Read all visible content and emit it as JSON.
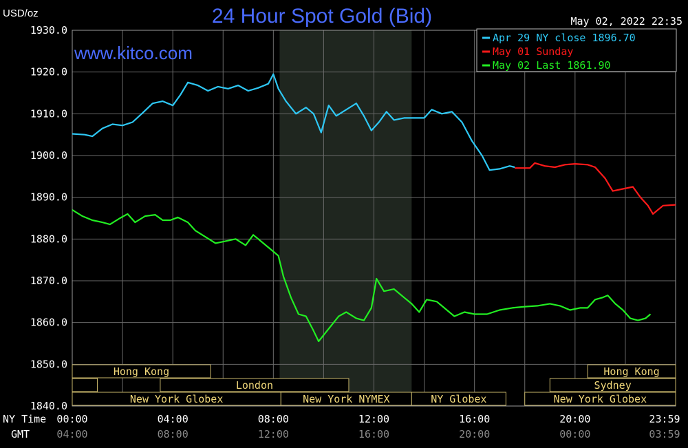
{
  "header": {
    "unit": "USD/oz",
    "title": "24 Hour Spot Gold (Bid)",
    "timestamp": "May 02, 2022 22:35",
    "watermark": "www.kitco.com"
  },
  "legend": [
    {
      "label": "Apr 29 NY close 1896.70",
      "color": "#2ec8f5"
    },
    {
      "label": "May 01 Sunday",
      "color": "#ff1a1a"
    },
    {
      "label": "May 02 Last 1861.90",
      "color": "#22ee22"
    }
  ],
  "axis": {
    "y_ticks": [
      "1930.0",
      "1920.0",
      "1910.0",
      "1900.0",
      "1890.0",
      "1880.0",
      "1870.0",
      "1860.0",
      "1850.0",
      "1840.0"
    ],
    "x_ny_label": "NY Time",
    "x_gmt_label": "GMT",
    "x_ny_ticks": [
      "00:00",
      "04:00",
      "08:00",
      "12:00",
      "16:00",
      "20:00",
      "23:59"
    ],
    "x_gmt_ticks": [
      "04:00",
      "08:00",
      "12:00",
      "16:00",
      "20:00",
      "00:00",
      "03:59"
    ]
  },
  "sessions": {
    "row1": [
      {
        "label": "Hong Kong",
        "start": 0,
        "end": 5.5
      },
      {
        "label": "Hong Kong",
        "start": 20.5,
        "end": 24
      }
    ],
    "row2": [
      {
        "label": "",
        "start": 0,
        "end": 1
      },
      {
        "label": "London",
        "start": 3.5,
        "end": 11
      },
      {
        "label": "",
        "start": 23.5,
        "end": 24
      },
      {
        "label": "Sydney",
        "start": 19,
        "end": 24
      }
    ],
    "row3": [
      {
        "label": "New York Globex",
        "start": 0,
        "end": 8.3
      },
      {
        "label": "New York NYMEX",
        "start": 8.3,
        "end": 13.5
      },
      {
        "label": "NY Globex",
        "start": 13.5,
        "end": 17.25
      },
      {
        "label": "New York Globex",
        "start": 18,
        "end": 24
      }
    ]
  },
  "chart_data": {
    "type": "line",
    "title": "24 Hour Spot Gold (Bid)",
    "ylabel": "USD/oz",
    "ylim": [
      1840,
      1930
    ],
    "xlim": [
      0,
      24
    ],
    "x_unit": "hours (NY Time)",
    "shaded_region": [
      8.25,
      13.5
    ],
    "series": [
      {
        "name": "Apr 29 NY close 1896.70",
        "color": "#2ec8f5",
        "points": [
          [
            0,
            1905.2
          ],
          [
            0.5,
            1905
          ],
          [
            0.8,
            1904.6
          ],
          [
            1.2,
            1906.5
          ],
          [
            1.6,
            1907.5
          ],
          [
            2.0,
            1907.2
          ],
          [
            2.4,
            1908
          ],
          [
            2.8,
            1910.2
          ],
          [
            3.2,
            1912.5
          ],
          [
            3.6,
            1913
          ],
          [
            4.0,
            1912
          ],
          [
            4.3,
            1914.5
          ],
          [
            4.6,
            1917.5
          ],
          [
            5.0,
            1916.8
          ],
          [
            5.4,
            1915.5
          ],
          [
            5.8,
            1916.5
          ],
          [
            6.2,
            1916
          ],
          [
            6.6,
            1916.8
          ],
          [
            7.0,
            1915.5
          ],
          [
            7.4,
            1916.2
          ],
          [
            7.8,
            1917.2
          ],
          [
            8.0,
            1919.5
          ],
          [
            8.2,
            1916
          ],
          [
            8.5,
            1913
          ],
          [
            8.9,
            1910
          ],
          [
            9.3,
            1911.5
          ],
          [
            9.6,
            1910
          ],
          [
            9.9,
            1905.5
          ],
          [
            10.2,
            1912
          ],
          [
            10.5,
            1909.5
          ],
          [
            10.9,
            1911
          ],
          [
            11.3,
            1912.5
          ],
          [
            11.6,
            1909.5
          ],
          [
            11.9,
            1906
          ],
          [
            12.2,
            1908
          ],
          [
            12.5,
            1910.5
          ],
          [
            12.8,
            1908.5
          ],
          [
            13.2,
            1909
          ],
          [
            13.6,
            1909
          ],
          [
            14.0,
            1909
          ],
          [
            14.3,
            1911
          ],
          [
            14.7,
            1910
          ],
          [
            15.1,
            1910.5
          ],
          [
            15.5,
            1908
          ],
          [
            15.9,
            1903.5
          ],
          [
            16.3,
            1900
          ],
          [
            16.6,
            1896.5
          ],
          [
            17.0,
            1896.8
          ],
          [
            17.4,
            1897.5
          ],
          [
            17.6,
            1897.2
          ]
        ]
      },
      {
        "name": "May 01 Sunday",
        "color": "#ff1a1a",
        "points": [
          [
            17.6,
            1897
          ],
          [
            18.0,
            1897
          ],
          [
            18.2,
            1897
          ],
          [
            18.4,
            1898.2
          ],
          [
            18.8,
            1897.5
          ],
          [
            19.2,
            1897.2
          ],
          [
            19.6,
            1897.8
          ],
          [
            20.0,
            1898
          ],
          [
            20.5,
            1897.8
          ],
          [
            20.8,
            1897.2
          ],
          [
            21.2,
            1894.5
          ],
          [
            21.5,
            1891.5
          ],
          [
            21.9,
            1892
          ],
          [
            22.3,
            1892.5
          ],
          [
            22.6,
            1890
          ],
          [
            22.9,
            1888
          ],
          [
            23.1,
            1886
          ],
          [
            23.5,
            1888
          ],
          [
            24.0,
            1888.2
          ]
        ]
      },
      {
        "name": "May 02 Last 1861.90",
        "color": "#22ee22",
        "points": [
          [
            0,
            1887
          ],
          [
            0.4,
            1885.5
          ],
          [
            0.8,
            1884.5
          ],
          [
            1.2,
            1884
          ],
          [
            1.5,
            1883.5
          ],
          [
            1.9,
            1885
          ],
          [
            2.2,
            1886
          ],
          [
            2.5,
            1884
          ],
          [
            2.9,
            1885.5
          ],
          [
            3.3,
            1885.8
          ],
          [
            3.6,
            1884.5
          ],
          [
            3.9,
            1884.5
          ],
          [
            4.2,
            1885.2
          ],
          [
            4.6,
            1884
          ],
          [
            4.9,
            1882
          ],
          [
            5.3,
            1880.5
          ],
          [
            5.7,
            1879
          ],
          [
            6.1,
            1879.5
          ],
          [
            6.5,
            1880
          ],
          [
            6.9,
            1878.5
          ],
          [
            7.2,
            1881
          ],
          [
            7.6,
            1879
          ],
          [
            7.9,
            1877.5
          ],
          [
            8.2,
            1876
          ],
          [
            8.4,
            1871
          ],
          [
            8.7,
            1866
          ],
          [
            9.0,
            1862
          ],
          [
            9.3,
            1861.5
          ],
          [
            9.6,
            1858
          ],
          [
            9.8,
            1855.5
          ],
          [
            10.2,
            1858.5
          ],
          [
            10.6,
            1861.5
          ],
          [
            10.9,
            1862.5
          ],
          [
            11.3,
            1861
          ],
          [
            11.6,
            1860.5
          ],
          [
            11.9,
            1863.5
          ],
          [
            12.1,
            1870.5
          ],
          [
            12.4,
            1867.5
          ],
          [
            12.8,
            1868
          ],
          [
            13.2,
            1866
          ],
          [
            13.5,
            1864.5
          ],
          [
            13.8,
            1862.5
          ],
          [
            14.1,
            1865.5
          ],
          [
            14.5,
            1865
          ],
          [
            14.9,
            1863
          ],
          [
            15.2,
            1861.5
          ],
          [
            15.6,
            1862.5
          ],
          [
            16.0,
            1862
          ],
          [
            16.5,
            1862
          ],
          [
            17.0,
            1863
          ],
          [
            17.5,
            1863.5
          ],
          [
            18.0,
            1863.8
          ],
          [
            18.5,
            1864
          ],
          [
            19.0,
            1864.5
          ],
          [
            19.4,
            1864
          ],
          [
            19.8,
            1863
          ],
          [
            20.2,
            1863.5
          ],
          [
            20.5,
            1863.5
          ],
          [
            20.8,
            1865.5
          ],
          [
            21.1,
            1866
          ],
          [
            21.3,
            1866.5
          ],
          [
            21.6,
            1864.5
          ],
          [
            21.9,
            1863
          ],
          [
            22.2,
            1861
          ],
          [
            22.5,
            1860.5
          ],
          [
            22.8,
            1861
          ],
          [
            23.0,
            1862
          ]
        ]
      }
    ]
  }
}
